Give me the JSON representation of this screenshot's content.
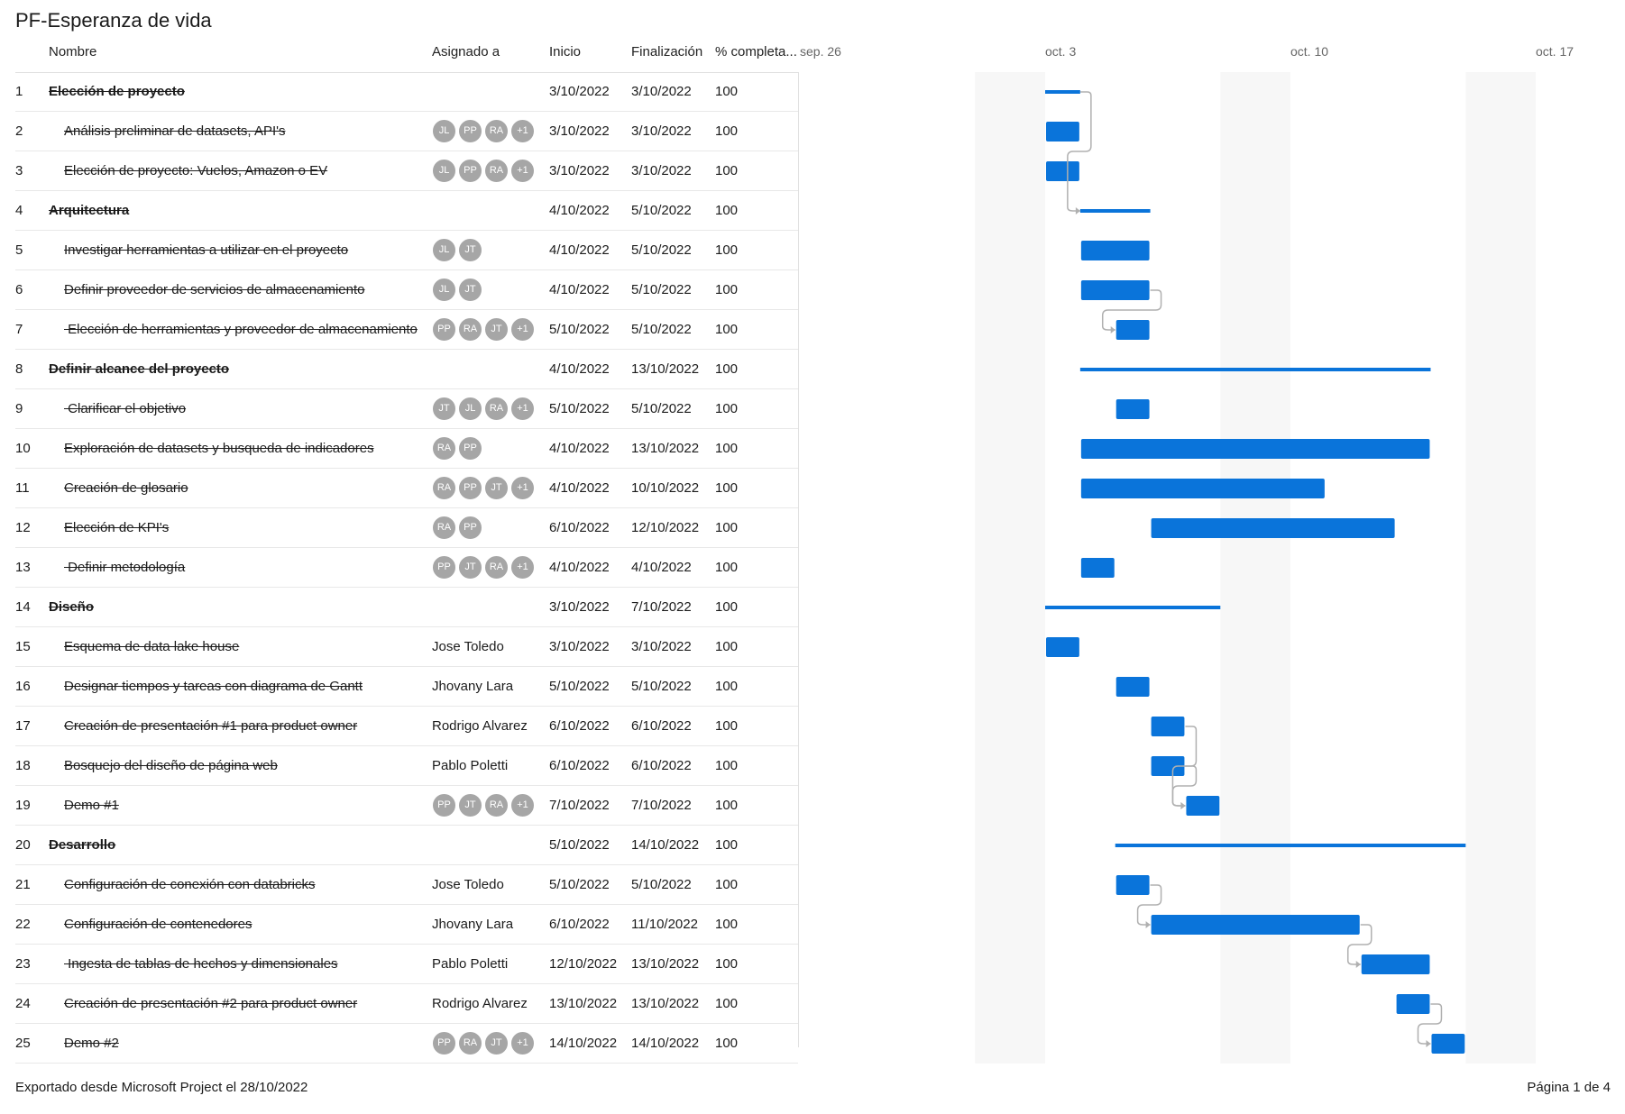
{
  "title": "PF-Esperanza de vida",
  "columns": {
    "name": "Nombre",
    "assigned": "Asignado a",
    "start": "Inicio",
    "finish": "Finalización",
    "percent": "% completa..."
  },
  "timeline_labels": [
    {
      "label": "sep. 26",
      "date": "2022-09-26"
    },
    {
      "label": "oct. 3",
      "date": "2022-10-03"
    },
    {
      "label": "oct. 10",
      "date": "2022-10-10"
    },
    {
      "label": "oct. 17",
      "date": "2022-10-17"
    }
  ],
  "tasks": [
    {
      "id": "1",
      "name": "Elección de proyecto",
      "summary": true,
      "level": 0,
      "assigned": null,
      "avatars": [],
      "start": "3/10/2022",
      "finish": "3/10/2022",
      "pct": "100"
    },
    {
      "id": "2",
      "name": "Análisis preliminar de datasets, API's",
      "summary": false,
      "level": 1,
      "assigned": null,
      "avatars": [
        "JL",
        "PP",
        "RA",
        "+1"
      ],
      "start": "3/10/2022",
      "finish": "3/10/2022",
      "pct": "100"
    },
    {
      "id": "3",
      "name": "Elección de proyecto: Vuelos, Amazon o EV",
      "summary": false,
      "level": 1,
      "assigned": null,
      "avatars": [
        "JL",
        "PP",
        "RA",
        "+1"
      ],
      "start": "3/10/2022",
      "finish": "3/10/2022",
      "pct": "100"
    },
    {
      "id": "4",
      "name": "Arquitectura",
      "summary": true,
      "level": 0,
      "assigned": null,
      "avatars": [],
      "start": "4/10/2022",
      "finish": "5/10/2022",
      "pct": "100"
    },
    {
      "id": "5",
      "name": "Investigar herramientas a utilizar en el proyecto",
      "summary": false,
      "level": 1,
      "assigned": null,
      "avatars": [
        "JL",
        "JT"
      ],
      "start": "4/10/2022",
      "finish": "5/10/2022",
      "pct": "100"
    },
    {
      "id": "6",
      "name": "Definir proveedor de servicios de almacenamiento",
      "summary": false,
      "level": 1,
      "assigned": null,
      "avatars": [
        "JL",
        "JT"
      ],
      "start": "4/10/2022",
      "finish": "5/10/2022",
      "pct": "100"
    },
    {
      "id": "7",
      "name": " Elección de herramientas y proveedor de almacenamiento",
      "summary": false,
      "level": 1,
      "assigned": null,
      "avatars": [
        "PP",
        "RA",
        "JT",
        "+1"
      ],
      "start": "5/10/2022",
      "finish": "5/10/2022",
      "pct": "100"
    },
    {
      "id": "8",
      "name": "Definir alcance del proyecto",
      "summary": true,
      "level": 0,
      "assigned": null,
      "avatars": [],
      "start": "4/10/2022",
      "finish": "13/10/2022",
      "pct": "100"
    },
    {
      "id": "9",
      "name": " Clarificar el objetivo",
      "summary": false,
      "level": 1,
      "assigned": null,
      "avatars": [
        "JT",
        "JL",
        "RA",
        "+1"
      ],
      "start": "5/10/2022",
      "finish": "5/10/2022",
      "pct": "100"
    },
    {
      "id": "10",
      "name": "Exploración de datasets y busqueda de indicadores",
      "summary": false,
      "level": 1,
      "assigned": null,
      "avatars": [
        "RA",
        "PP"
      ],
      "start": "4/10/2022",
      "finish": "13/10/2022",
      "pct": "100"
    },
    {
      "id": "11",
      "name": "Creación de glosario",
      "summary": false,
      "level": 1,
      "assigned": null,
      "avatars": [
        "RA",
        "PP",
        "JT",
        "+1"
      ],
      "start": "4/10/2022",
      "finish": "10/10/2022",
      "pct": "100"
    },
    {
      "id": "12",
      "name": "Elección de KPI's",
      "summary": false,
      "level": 1,
      "assigned": null,
      "avatars": [
        "RA",
        "PP"
      ],
      "start": "6/10/2022",
      "finish": "12/10/2022",
      "pct": "100"
    },
    {
      "id": "13",
      "name": " Definir metodología",
      "summary": false,
      "level": 1,
      "assigned": null,
      "avatars": [
        "PP",
        "JT",
        "RA",
        "+1"
      ],
      "start": "4/10/2022",
      "finish": "4/10/2022",
      "pct": "100"
    },
    {
      "id": "14",
      "name": "Diseño",
      "summary": true,
      "level": 0,
      "assigned": null,
      "avatars": [],
      "start": "3/10/2022",
      "finish": "7/10/2022",
      "pct": "100"
    },
    {
      "id": "15",
      "name": "Esquema de data lake house",
      "summary": false,
      "level": 1,
      "assigned": "Jose Toledo",
      "avatars": [],
      "start": "3/10/2022",
      "finish": "3/10/2022",
      "pct": "100"
    },
    {
      "id": "16",
      "name": "Designar tiempos y tareas con diagrama de Gantt",
      "summary": false,
      "level": 1,
      "assigned": "Jhovany Lara",
      "avatars": [],
      "start": "5/10/2022",
      "finish": "5/10/2022",
      "pct": "100"
    },
    {
      "id": "17",
      "name": "Creación de presentación #1 para product owner",
      "summary": false,
      "level": 1,
      "assigned": "Rodrigo Alvarez",
      "avatars": [],
      "start": "6/10/2022",
      "finish": "6/10/2022",
      "pct": "100"
    },
    {
      "id": "18",
      "name": "Bosquejo del diseño de página web",
      "summary": false,
      "level": 1,
      "assigned": "Pablo Poletti",
      "avatars": [],
      "start": "6/10/2022",
      "finish": "6/10/2022",
      "pct": "100"
    },
    {
      "id": "19",
      "name": "Demo #1",
      "summary": false,
      "level": 1,
      "assigned": null,
      "avatars": [
        "PP",
        "JT",
        "RA",
        "+1"
      ],
      "start": "7/10/2022",
      "finish": "7/10/2022",
      "pct": "100"
    },
    {
      "id": "20",
      "name": "Desarrollo",
      "summary": true,
      "level": 0,
      "assigned": null,
      "avatars": [],
      "start": "5/10/2022",
      "finish": "14/10/2022",
      "pct": "100"
    },
    {
      "id": "21",
      "name": "Configuración de conexión con databricks",
      "summary": false,
      "level": 1,
      "assigned": "Jose Toledo",
      "avatars": [],
      "start": "5/10/2022",
      "finish": "5/10/2022",
      "pct": "100"
    },
    {
      "id": "22",
      "name": "Configuración de contenedores",
      "summary": false,
      "level": 1,
      "assigned": "Jhovany Lara",
      "avatars": [],
      "start": "6/10/2022",
      "finish": "11/10/2022",
      "pct": "100"
    },
    {
      "id": "23",
      "name": " Ingesta de tablas de hechos y dimensionales",
      "summary": false,
      "level": 1,
      "assigned": "Pablo Poletti",
      "avatars": [],
      "start": "12/10/2022",
      "finish": "13/10/2022",
      "pct": "100"
    },
    {
      "id": "24",
      "name": "Creación de presentación #2 para product owner",
      "summary": false,
      "level": 1,
      "assigned": "Rodrigo Alvarez",
      "avatars": [],
      "start": "13/10/2022",
      "finish": "13/10/2022",
      "pct": "100"
    },
    {
      "id": "25",
      "name": "Demo #2",
      "summary": false,
      "level": 1,
      "assigned": null,
      "avatars": [
        "PP",
        "RA",
        "JT",
        "+1"
      ],
      "start": "14/10/2022",
      "finish": "14/10/2022",
      "pct": "100"
    }
  ],
  "dependencies": [
    [
      1,
      4
    ],
    [
      6,
      7
    ],
    [
      17,
      19
    ],
    [
      18,
      19
    ],
    [
      21,
      22
    ],
    [
      22,
      23
    ],
    [
      24,
      25
    ]
  ],
  "colors": {
    "bar": "#0a74da",
    "connector": "#b0b0b0",
    "weekend": "#f7f7f7"
  },
  "footer": {
    "left": "Exportado desde Microsoft Project el 28/10/2022",
    "right": "Página 1 de 4"
  }
}
